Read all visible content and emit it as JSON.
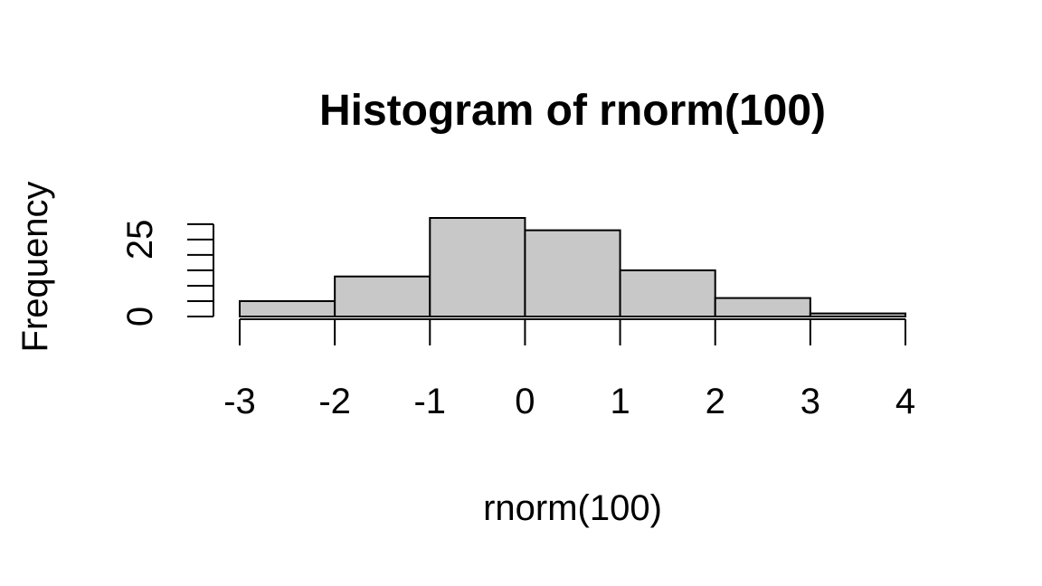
{
  "chart_data": {
    "type": "histogram",
    "title": "Histogram of rnorm(100)",
    "x_label": "rnorm(100)",
    "y_label": "Frequency",
    "bins": [
      -3,
      -2,
      -1,
      0,
      1,
      2,
      3,
      4
    ],
    "values": [
      5,
      13,
      32,
      28,
      15,
      6,
      1
    ],
    "color": "#c8c8c8",
    "xlim": [
      -3,
      4
    ],
    "xticks": [
      -3,
      -2,
      -1,
      0,
      1,
      2,
      3,
      4
    ],
    "ylim": [
      0,
      32
    ],
    "yticks": [
      0,
      25
    ],
    "yticks_unlabeled": [
      5,
      10,
      15,
      20,
      30
    ]
  }
}
